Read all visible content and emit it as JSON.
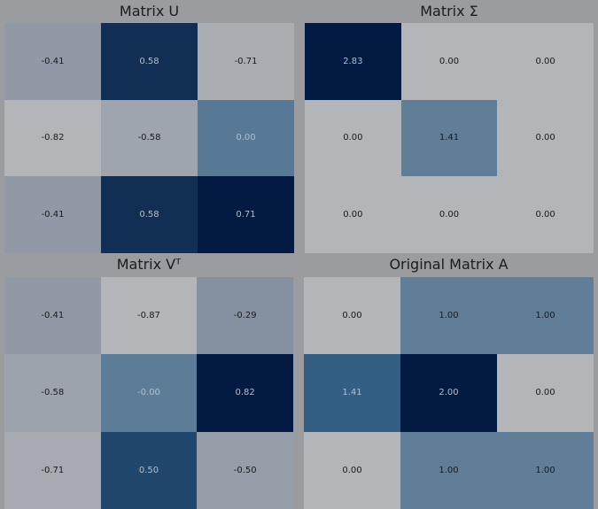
{
  "chart_data": [
    {
      "type": "heatmap",
      "title": "Matrix U",
      "values": [
        [
          -0.41,
          0.58,
          -0.71
        ],
        [
          -0.82,
          -0.58,
          0.0
        ],
        [
          -0.41,
          0.58,
          0.71
        ]
      ],
      "labels": [
        [
          "-0.41",
          "0.58",
          "-0.71"
        ],
        [
          "-0.82",
          "-0.58",
          "0.00"
        ],
        [
          "-0.41",
          "0.58",
          "0.71"
        ]
      ],
      "colormap": "Blues"
    },
    {
      "type": "heatmap",
      "title": "Matrix Σ",
      "values": [
        [
          2.83,
          0.0,
          0.0
        ],
        [
          0.0,
          1.41,
          0.0
        ],
        [
          0.0,
          0.0,
          0.0
        ]
      ],
      "labels": [
        [
          "2.83",
          "0.00",
          "0.00"
        ],
        [
          "0.00",
          "1.41",
          "0.00"
        ],
        [
          "0.00",
          "0.00",
          "0.00"
        ]
      ],
      "colormap": "Blues"
    },
    {
      "type": "heatmap",
      "title": "Matrix Vᵀ",
      "values": [
        [
          -0.41,
          -0.87,
          -0.29
        ],
        [
          -0.58,
          -0.0,
          0.82
        ],
        [
          -0.71,
          0.5,
          -0.5
        ]
      ],
      "labels": [
        [
          "-0.41",
          "-0.87",
          "-0.29"
        ],
        [
          "-0.58",
          "-0.00",
          "0.82"
        ],
        [
          "-0.71",
          "0.50",
          "-0.50"
        ]
      ],
      "colormap": "Blues"
    },
    {
      "type": "heatmap",
      "title": "Original Matrix A",
      "values": [
        [
          0.0,
          1.0,
          1.0
        ],
        [
          1.41,
          2.0,
          0.0
        ],
        [
          0.0,
          1.0,
          1.0
        ]
      ],
      "labels": [
        [
          "0.00",
          "1.00",
          "1.00"
        ],
        [
          "1.41",
          "2.00",
          "0.00"
        ],
        [
          "0.00",
          "1.00",
          "1.00"
        ]
      ],
      "colormap": "Blues"
    }
  ],
  "colors": {
    "low": "#b3b5b8",
    "high": "#031a42",
    "text_dark": "#1a1a1a",
    "text_light": "#b8bec6",
    "background": "#9a9c9f"
  }
}
